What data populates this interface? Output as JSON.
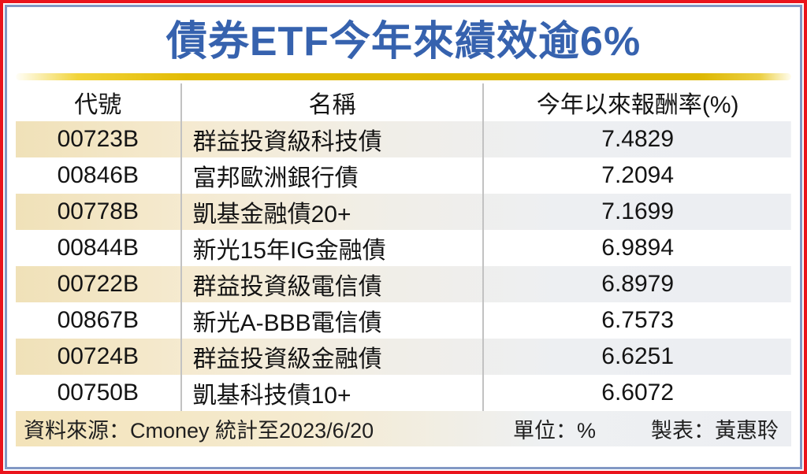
{
  "title": "債券ETF今年來績效逾6%",
  "table": {
    "headers": [
      "代號",
      "名稱",
      "今年以來報酬率(%)"
    ],
    "rows": [
      {
        "code": "00723B",
        "name": "群益投資級科技債",
        "return": "7.4829"
      },
      {
        "code": "00846B",
        "name": "富邦歐洲銀行債",
        "return": "7.2094"
      },
      {
        "code": "00778B",
        "name": "凱基金融債20+",
        "return": "7.1699"
      },
      {
        "code": "00844B",
        "name": "新光15年IG金融債",
        "return": "6.9894"
      },
      {
        "code": "00722B",
        "name": "群益投資級電信債",
        "return": "6.8979"
      },
      {
        "code": "00867B",
        "name": "新光A-BBB電信債",
        "return": "6.7573"
      },
      {
        "code": "00724B",
        "name": "群益投資級金融債",
        "return": "6.6251"
      },
      {
        "code": "00750B",
        "name": "凱基科技債10+",
        "return": "6.6072"
      }
    ]
  },
  "footer": {
    "source": "資料來源：Cmoney 統計至2023/6/20",
    "unit": "單位：%",
    "credit": "製表：黃惠聆"
  },
  "colors": {
    "title_blue": "#3662ae",
    "frame_red": "#ea141c",
    "border_blue": "#8298c4",
    "gold_bar": "#ddb700",
    "row_cream": "#f0e1b8",
    "row_bluegray": "#eceef2",
    "separator_gray": "#c2c2c2"
  },
  "chart_data": {
    "type": "table",
    "title": "債券ETF今年來績效逾6%",
    "columns": [
      "代號",
      "名稱",
      "今年以來報酬率(%)"
    ],
    "rows": [
      [
        "00723B",
        "群益投資級科技債",
        7.4829
      ],
      [
        "00846B",
        "富邦歐洲銀行債",
        7.2094
      ],
      [
        "00778B",
        "凱基金融債20+",
        7.1699
      ],
      [
        "00844B",
        "新光15年IG金融債",
        6.9894
      ],
      [
        "00722B",
        "群益投資級電信債",
        6.8979
      ],
      [
        "00867B",
        "新光A-BBB電信債",
        6.7573
      ],
      [
        "00724B",
        "群益投資級金融債",
        6.6251
      ],
      [
        "00750B",
        "凱基科技債10+",
        6.6072
      ]
    ],
    "unit": "%",
    "notes": [
      "資料來源：Cmoney 統計至2023/6/20",
      "單位：%",
      "製表：黃惠聆"
    ]
  }
}
